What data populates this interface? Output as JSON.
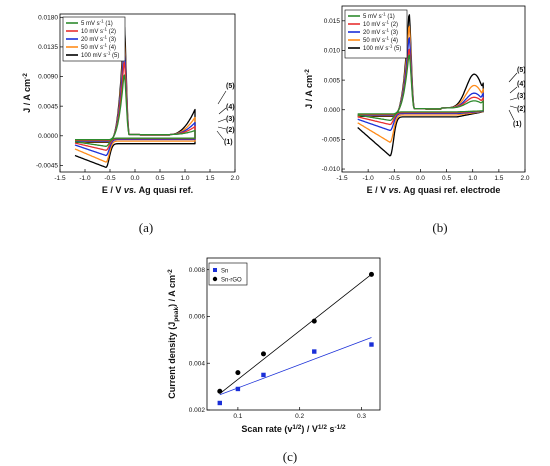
{
  "captions": [
    "(a)",
    "(b)",
    "(c)"
  ],
  "chart_data": [
    {
      "type": "line",
      "panel": "(a)",
      "xlabel_parts": [
        "E / V ",
        "vs.",
        " Ag quasi ref."
      ],
      "ylabel_main": "J / A cm",
      "ylabel_sup": "-2",
      "xlim": [
        -1.5,
        2.0
      ],
      "ylim": [
        -0.0055,
        0.0185
      ],
      "xticks": [
        "-1.5",
        "-1.0",
        "-0.5",
        "0.0",
        "0.5",
        "1.0",
        "1.5",
        "2.0"
      ],
      "xtick_values": [
        -1.5,
        -1.0,
        -0.5,
        0.0,
        0.5,
        1.0,
        1.5,
        2.0
      ],
      "yticks": [
        "-0.0045",
        "0.0000",
        "0.0045",
        "0.0090",
        "0.0135",
        "0.0180"
      ],
      "ytick_values": [
        -0.0045,
        0.0,
        0.0045,
        0.009,
        0.0135,
        0.018
      ],
      "legend_position": "top-left",
      "series": [
        {
          "name": "5 mV s",
          "sup": "-1",
          "tag": "(1)",
          "color": "#2e8b2e",
          "peak_ox": 0.0095,
          "peak_red": -0.0016,
          "end_ox": 0.0006,
          "base_top": -0.0006,
          "base_bot": -0.0009
        },
        {
          "name": "10 mV s",
          "sup": "-1",
          "tag": "(2)",
          "color": "#e83030",
          "peak_ox": 0.0115,
          "peak_red": -0.0022,
          "end_ox": 0.0012,
          "base_top": -0.0007,
          "base_bot": -0.0011
        },
        {
          "name": "20 mV s",
          "sup": "-1",
          "tag": "(3)",
          "color": "#1a2fd8",
          "peak_ox": 0.0135,
          "peak_red": -0.003,
          "end_ox": 0.0018,
          "base_top": -0.0008,
          "base_bot": -0.0014
        },
        {
          "name": "50 mV s",
          "sup": "-1",
          "tag": "(4)",
          "color": "#ff8c1a",
          "peak_ox": 0.015,
          "peak_red": -0.004,
          "end_ox": 0.0026,
          "base_top": -0.0009,
          "base_bot": -0.002
        },
        {
          "name": "100 mV s",
          "sup": "-1",
          "tag": "(5)",
          "color": "#000000",
          "peak_ox": 0.017,
          "peak_red": -0.0048,
          "end_ox": 0.0038,
          "base_top": -0.001,
          "base_bot": -0.003
        }
      ],
      "annotations": [
        "(5)",
        "(4)",
        "(3)",
        "(2)",
        "(1)"
      ]
    },
    {
      "type": "line",
      "panel": "(b)",
      "xlabel_parts": [
        "E / V ",
        "vs.",
        " Ag quasi ref. electrode"
      ],
      "ylabel_main": "J / A cm",
      "ylabel_sup": "-2",
      "xlim": [
        -1.5,
        2.0
      ],
      "ylim": [
        -0.0105,
        0.0175
      ],
      "xticks": [
        "-1.5",
        "-1.0",
        "-0.5",
        "0.0",
        "0.5",
        "1.0",
        "1.5",
        "2.0"
      ],
      "xtick_values": [
        -1.5,
        -1.0,
        -0.5,
        0.0,
        0.5,
        1.0,
        1.5,
        2.0
      ],
      "yticks": [
        "-0.010",
        "-0.005",
        "0.000",
        "0.005",
        "0.010",
        "0.015"
      ],
      "ytick_values": [
        -0.01,
        -0.005,
        0.0,
        0.005,
        0.01,
        0.015
      ],
      "legend_position": "top-left",
      "series": [
        {
          "name": "5 mV s",
          "sup": "-1",
          "tag": "(1)",
          "color": "#2e8b2e",
          "peak_ox": 0.0095,
          "peak_red": -0.0018,
          "end_ox": 0.0015,
          "hump": 0.0012,
          "base_top": -0.0007,
          "base_bot": -0.0009
        },
        {
          "name": "10 mV s",
          "sup": "-1",
          "tag": "(2)",
          "color": "#e83030",
          "peak_ox": 0.0105,
          "peak_red": -0.0025,
          "end_ox": 0.002,
          "hump": 0.0018,
          "base_top": -0.0008,
          "base_bot": -0.0012
        },
        {
          "name": "20 mV s",
          "sup": "-1",
          "tag": "(3)",
          "color": "#1a2fd8",
          "peak_ox": 0.0125,
          "peak_red": -0.0035,
          "end_ox": 0.0028,
          "hump": 0.0025,
          "base_top": -0.0009,
          "base_bot": -0.0016
        },
        {
          "name": "50 mV s",
          "sup": "-1",
          "tag": "(4)",
          "color": "#ff8c1a",
          "peak_ox": 0.0145,
          "peak_red": -0.0055,
          "end_ox": 0.0035,
          "hump": 0.0038,
          "base_top": -0.001,
          "base_bot": -0.0022
        },
        {
          "name": "100 mV s",
          "sup": "-1",
          "tag": "(5)",
          "color": "#000000",
          "peak_ox": 0.0165,
          "peak_red": -0.0078,
          "end_ox": 0.0045,
          "hump": 0.0057,
          "base_top": -0.0011,
          "base_bot": -0.003
        }
      ],
      "annotations": [
        "(5)",
        "(4)",
        "(3)",
        "(2)",
        "(1)"
      ]
    },
    {
      "type": "scatter",
      "panel": "(c)",
      "xlabel_main": "Scan rate (v",
      "xlabel_sup1": "1/2",
      "xlabel_mid": ") / V",
      "xlabel_sup2": "1/2",
      "xlabel_tail": " s",
      "xlabel_sup3": "-1/2",
      "ylabel_main": "Current density (J",
      "ylabel_sub": "peak",
      "ylabel_mid": ") / A cm",
      "ylabel_sup": "-2",
      "xlim": [
        0.05,
        0.33
      ],
      "ylim": [
        0.002,
        0.0085
      ],
      "xticks": [
        "0.1",
        "0.2",
        "0.3"
      ],
      "xtick_values": [
        0.1,
        0.2,
        0.3
      ],
      "yticks": [
        "0.002",
        "0.004",
        "0.006",
        "0.008"
      ],
      "ytick_values": [
        0.002,
        0.004,
        0.006,
        0.008
      ],
      "legend_position": "top-left",
      "series": [
        {
          "name": "Sn",
          "marker": "square",
          "color": "#1a2fd8",
          "x": [
            0.0707,
            0.1,
            0.1414,
            0.2236,
            0.3162
          ],
          "y": [
            0.0023,
            0.0029,
            0.0035,
            0.0045,
            0.0048
          ],
          "fit": [
            [
              0.0707,
              0.00265
            ],
            [
              0.3162,
              0.0051
            ]
          ]
        },
        {
          "name": "Sn-rGO",
          "marker": "circle",
          "color": "#000000",
          "x": [
            0.0707,
            0.1,
            0.1414,
            0.2236,
            0.3162
          ],
          "y": [
            0.0028,
            0.0036,
            0.0044,
            0.0058,
            0.0078
          ],
          "fit": [
            [
              0.0707,
              0.0027
            ],
            [
              0.3162,
              0.0078
            ]
          ]
        }
      ]
    }
  ]
}
